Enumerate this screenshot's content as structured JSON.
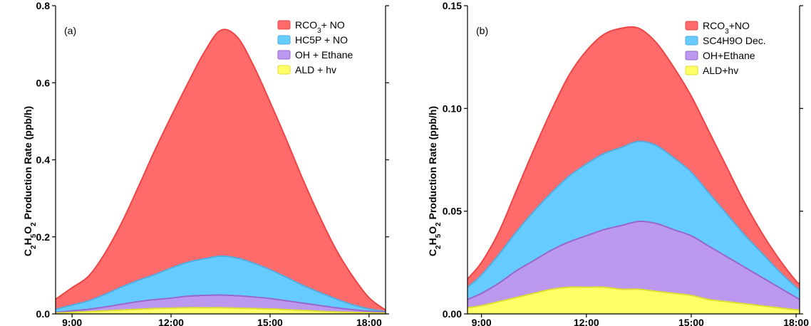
{
  "chart_data": [
    {
      "type": "area",
      "panel_label": "(a)",
      "ylabel_parts": [
        "C",
        "2",
        "H",
        "5",
        "O",
        "2",
        " Production Rate (ppb/h)"
      ],
      "ylim": [
        0,
        0.8
      ],
      "yticks": [
        0.0,
        0.2,
        0.4,
        0.6,
        0.8
      ],
      "ytick_labels": [
        "0.0",
        "0.2",
        "0.4",
        "0.6",
        "0.8"
      ],
      "xlim": [
        8.5,
        18.5
      ],
      "xticks": [
        9,
        12,
        15,
        18
      ],
      "xtick_labels": [
        "9:00",
        "12:00",
        "15:00",
        "18:00"
      ],
      "stacking": "cumulative",
      "x": [
        8.5,
        9,
        9.5,
        10,
        10.5,
        11,
        11.5,
        12,
        12.5,
        13,
        13.5,
        14,
        14.5,
        15,
        15.5,
        16,
        16.5,
        17,
        17.5,
        18,
        18.5
      ],
      "series": [
        {
          "name": "RCO3+ NO",
          "name_parts": [
            "RCO",
            "3",
            "+ NO"
          ],
          "color": "#ff6b6b",
          "edge": "#ee4444",
          "values": [
            0.026,
            0.045,
            0.064,
            0.107,
            0.166,
            0.241,
            0.321,
            0.393,
            0.463,
            0.535,
            0.586,
            0.574,
            0.512,
            0.435,
            0.356,
            0.274,
            0.197,
            0.128,
            0.074,
            0.029,
            0.004
          ]
        },
        {
          "name": "HC5P + NO",
          "color": "#66ccff",
          "edge": "#55aadd",
          "values": [
            0.008,
            0.015,
            0.022,
            0.033,
            0.045,
            0.055,
            0.065,
            0.078,
            0.088,
            0.095,
            0.101,
            0.098,
            0.088,
            0.075,
            0.061,
            0.046,
            0.034,
            0.023,
            0.013,
            0.006,
            0.002
          ]
        },
        {
          "name": "OH + Ethane",
          "color": "#bb99ee",
          "edge": "#9966cc",
          "values": [
            0.002,
            0.004,
            0.006,
            0.01,
            0.015,
            0.02,
            0.023,
            0.026,
            0.03,
            0.032,
            0.033,
            0.032,
            0.03,
            0.027,
            0.023,
            0.019,
            0.015,
            0.011,
            0.007,
            0.004,
            0.002
          ]
        },
        {
          "name": "ALD + hv",
          "color": "#ffff66",
          "edge": "#dddd33",
          "values": [
            0.002,
            0.004,
            0.006,
            0.008,
            0.01,
            0.012,
            0.014,
            0.015,
            0.016,
            0.016,
            0.016,
            0.015,
            0.014,
            0.013,
            0.011,
            0.009,
            0.007,
            0.005,
            0.004,
            0.003,
            0.002
          ]
        }
      ]
    },
    {
      "type": "area",
      "panel_label": "(b)",
      "ylabel_parts": [
        "C",
        "2",
        "H",
        "5",
        "O",
        "2",
        " Production Rate (ppb/h)"
      ],
      "ylim": [
        0,
        0.15
      ],
      "yticks": [
        0.0,
        0.05,
        0.1,
        0.15
      ],
      "ytick_labels": [
        "0.00",
        "0.05",
        "0.10",
        "0.15"
      ],
      "xlim": [
        8.6,
        18.1
      ],
      "xticks": [
        9,
        12,
        15,
        18
      ],
      "xtick_labels": [
        "9:00",
        "12:00",
        "15:00",
        "18:00"
      ],
      "stacking": "cumulative",
      "x": [
        8.6,
        9,
        9.5,
        10,
        10.5,
        11,
        11.5,
        12,
        12.5,
        13,
        13.5,
        14,
        14.5,
        15,
        15.5,
        16,
        16.5,
        17,
        17.5,
        18,
        18.1
      ],
      "series": [
        {
          "name": "RCO3+NO",
          "name_parts": [
            "RCO",
            "3",
            "+NO"
          ],
          "color": "#ff6b6b",
          "edge": "#ee4444",
          "values": [
            0.004,
            0.006,
            0.011,
            0.02,
            0.03,
            0.04,
            0.049,
            0.055,
            0.058,
            0.058,
            0.055,
            0.05,
            0.044,
            0.037,
            0.03,
            0.023,
            0.016,
            0.01,
            0.006,
            0.003,
            0.003
          ]
        },
        {
          "name": "SC4H9O Dec.",
          "color": "#66ccff",
          "edge": "#55aadd",
          "values": [
            0.006,
            0.009,
            0.014,
            0.019,
            0.024,
            0.028,
            0.032,
            0.035,
            0.037,
            0.038,
            0.039,
            0.038,
            0.035,
            0.031,
            0.026,
            0.021,
            0.016,
            0.012,
            0.008,
            0.005,
            0.005
          ]
        },
        {
          "name": "OH+Ethane",
          "color": "#bb99ee",
          "edge": "#9966cc",
          "values": [
            0.004,
            0.006,
            0.009,
            0.013,
            0.016,
            0.019,
            0.022,
            0.025,
            0.028,
            0.031,
            0.033,
            0.033,
            0.031,
            0.029,
            0.026,
            0.022,
            0.018,
            0.014,
            0.01,
            0.006,
            0.005
          ]
        },
        {
          "name": "ALD+hv",
          "color": "#ffff66",
          "edge": "#dddd33",
          "values": [
            0.003,
            0.004,
            0.006,
            0.008,
            0.01,
            0.012,
            0.013,
            0.013,
            0.013,
            0.012,
            0.012,
            0.011,
            0.01,
            0.009,
            0.007,
            0.006,
            0.005,
            0.004,
            0.003,
            0.002,
            0.002
          ]
        }
      ]
    }
  ]
}
